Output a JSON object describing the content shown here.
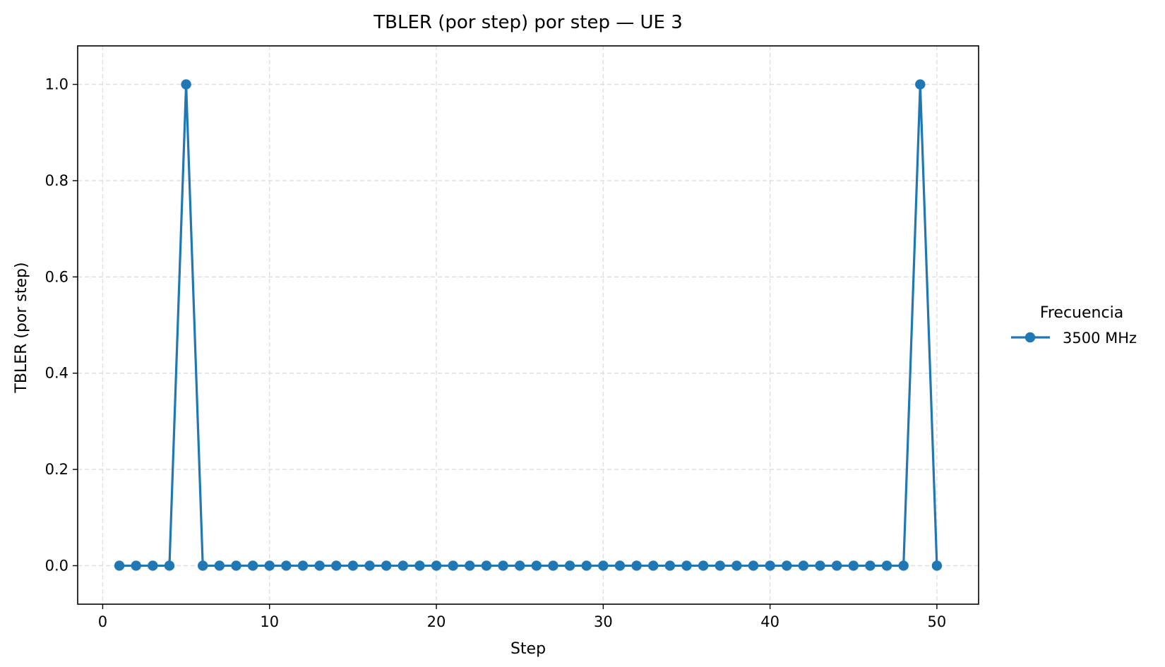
{
  "chart_data": {
    "type": "line",
    "title": "TBLER (por step) por step — UE 3",
    "xlabel": "Step",
    "ylabel": "TBLER (por step)",
    "xlim": [
      -1.5,
      52.5
    ],
    "ylim": [
      -0.08,
      1.08
    ],
    "xticks": [
      0,
      10,
      20,
      30,
      40,
      50
    ],
    "xtick_labels": [
      "0",
      "10",
      "20",
      "30",
      "40",
      "50"
    ],
    "yticks": [
      0.0,
      0.2,
      0.4,
      0.6,
      0.8,
      1.0
    ],
    "ytick_labels": [
      "0.0",
      "0.2",
      "0.4",
      "0.6",
      "0.8",
      "1.0"
    ],
    "grid": true,
    "legend": {
      "title": "Frecuencia",
      "placement": "outside-right"
    },
    "x": [
      1,
      2,
      3,
      4,
      5,
      6,
      7,
      8,
      9,
      10,
      11,
      12,
      13,
      14,
      15,
      16,
      17,
      18,
      19,
      20,
      21,
      22,
      23,
      24,
      25,
      26,
      27,
      28,
      29,
      30,
      31,
      32,
      33,
      34,
      35,
      36,
      37,
      38,
      39,
      40,
      41,
      42,
      43,
      44,
      45,
      46,
      47,
      48,
      49,
      50
    ],
    "series": [
      {
        "name": "3500 MHz",
        "color": "#1f77b4",
        "marker": "circle",
        "values": [
          0,
          0,
          0,
          0,
          1,
          0,
          0,
          0,
          0,
          0,
          0,
          0,
          0,
          0,
          0,
          0,
          0,
          0,
          0,
          0,
          0,
          0,
          0,
          0,
          0,
          0,
          0,
          0,
          0,
          0,
          0,
          0,
          0,
          0,
          0,
          0,
          0,
          0,
          0,
          0,
          0,
          0,
          0,
          0,
          0,
          0,
          0,
          0,
          1,
          0
        ]
      }
    ]
  }
}
